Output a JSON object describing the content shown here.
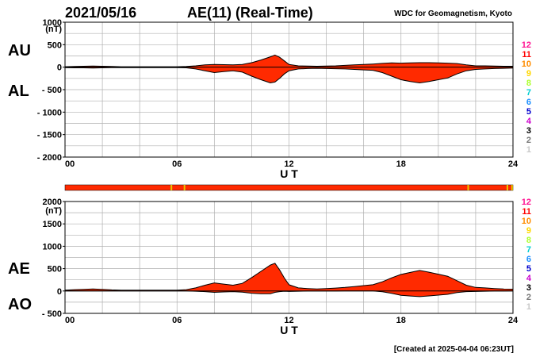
{
  "header": {
    "date": "2021/05/16",
    "title": "AE(11) (Real-Time)",
    "source": "WDC for Geomagnetism, Kyoto"
  },
  "footer": {
    "created": "[Created at 2025-04-04 06:23UT]"
  },
  "colors": {
    "fill": "#ff2a00",
    "line": "#000000",
    "grid": "#b0b0b0",
    "band": "#ff2a00",
    "band_mark": "#e6c800"
  },
  "station_scale": [
    {
      "label": "12",
      "color": "#ff1493"
    },
    {
      "label": "11",
      "color": "#ff0000"
    },
    {
      "label": "10",
      "color": "#ff8c00"
    },
    {
      "label": "9",
      "color": "#ffd700"
    },
    {
      "label": "8",
      "color": "#adff2f"
    },
    {
      "label": "7",
      "color": "#00ced1"
    },
    {
      "label": "6",
      "color": "#1e90ff"
    },
    {
      "label": "5",
      "color": "#0000cd"
    },
    {
      "label": "4",
      "color": "#cc00cc"
    },
    {
      "label": "3",
      "color": "#000000"
    },
    {
      "label": "2",
      "color": "#777777"
    },
    {
      "label": "1",
      "color": "#c8c8c8"
    }
  ],
  "chart_data": [
    {
      "type": "area",
      "panel": "AU/AL",
      "series_labels": [
        "AU",
        "AL"
      ],
      "unit_label": "(nT)",
      "xlabel": "U T",
      "ylim": [
        -2000,
        1000
      ],
      "xlim": [
        0,
        24
      ],
      "yticks": [
        1000,
        500,
        0,
        -500,
        -1000,
        -1500,
        -2000
      ],
      "ytick_labels": [
        "1000",
        "500",
        "0",
        "- 500",
        "- 1000",
        "- 1500",
        "- 2000"
      ],
      "xticks": [
        0,
        6,
        12,
        18,
        24
      ],
      "xtick_labels": [
        "00",
        "06",
        "12",
        "18",
        "24"
      ],
      "grid": true,
      "x": [
        0,
        0.5,
        1,
        1.5,
        2,
        2.5,
        3,
        3.5,
        4,
        4.5,
        5,
        5.5,
        6,
        6.5,
        7,
        7.5,
        8,
        8.5,
        9,
        9.5,
        10,
        10.5,
        11,
        11.25,
        11.5,
        11.75,
        12,
        12.5,
        13,
        13.5,
        14,
        14.5,
        15,
        15.5,
        16,
        16.5,
        17,
        17.5,
        18,
        18.5,
        19,
        19.5,
        20,
        20.5,
        21,
        21.5,
        22,
        22.5,
        23,
        23.5,
        24
      ],
      "au": [
        10,
        15,
        20,
        25,
        20,
        15,
        10,
        10,
        10,
        10,
        10,
        10,
        10,
        15,
        30,
        50,
        60,
        55,
        50,
        60,
        100,
        160,
        230,
        270,
        220,
        140,
        60,
        30,
        25,
        20,
        25,
        30,
        40,
        50,
        60,
        70,
        85,
        95,
        90,
        95,
        100,
        100,
        95,
        90,
        80,
        50,
        30,
        30,
        25,
        20,
        20
      ],
      "al": [
        -10,
        -15,
        -15,
        -20,
        -15,
        -10,
        -10,
        -10,
        -10,
        -10,
        -10,
        -10,
        -10,
        -15,
        -40,
        -80,
        -120,
        -100,
        -80,
        -110,
        -200,
        -280,
        -350,
        -330,
        -250,
        -150,
        -80,
        -40,
        -30,
        -25,
        -30,
        -35,
        -40,
        -50,
        -60,
        -70,
        -120,
        -200,
        -280,
        -320,
        -350,
        -320,
        -280,
        -240,
        -150,
        -80,
        -50,
        -40,
        -30,
        -25,
        -20
      ]
    },
    {
      "type": "area",
      "panel": "AE/AO",
      "series_labels": [
        "AE",
        "AO"
      ],
      "unit_label": "(nT)",
      "xlabel": "U T",
      "ylim": [
        -500,
        2000
      ],
      "xlim": [
        0,
        24
      ],
      "yticks": [
        2000,
        1500,
        1000,
        500,
        0,
        -500
      ],
      "ytick_labels": [
        "2000",
        "1500",
        "1000",
        "500",
        "0",
        "- 500"
      ],
      "xticks": [
        0,
        6,
        12,
        18,
        24
      ],
      "xtick_labels": [
        "00",
        "06",
        "12",
        "18",
        "24"
      ],
      "grid": true,
      "x": [
        0,
        0.5,
        1,
        1.5,
        2,
        2.5,
        3,
        3.5,
        4,
        4.5,
        5,
        5.5,
        6,
        6.5,
        7,
        7.5,
        8,
        8.5,
        9,
        9.5,
        10,
        10.5,
        11,
        11.25,
        11.5,
        11.75,
        12,
        12.5,
        13,
        13.5,
        14,
        14.5,
        15,
        15.5,
        16,
        16.5,
        17,
        17.5,
        18,
        18.5,
        19,
        19.5,
        20,
        20.5,
        21,
        21.5,
        22,
        22.5,
        23,
        23.5,
        24
      ],
      "ae": [
        20,
        30,
        35,
        45,
        35,
        25,
        20,
        20,
        20,
        20,
        20,
        20,
        20,
        30,
        70,
        130,
        180,
        155,
        130,
        170,
        300,
        440,
        580,
        620,
        470,
        290,
        140,
        70,
        55,
        45,
        55,
        65,
        80,
        100,
        120,
        140,
        205,
        295,
        370,
        415,
        460,
        420,
        375,
        330,
        230,
        130,
        80,
        70,
        55,
        45,
        40
      ],
      "ao": [
        0,
        0,
        2,
        2,
        2,
        2,
        0,
        0,
        0,
        0,
        0,
        0,
        0,
        0,
        -5,
        -15,
        -30,
        -22,
        -15,
        -25,
        -50,
        -60,
        -60,
        -30,
        -15,
        -5,
        -10,
        -5,
        -2,
        -2,
        -2,
        -2,
        0,
        0,
        0,
        0,
        -17,
        -52,
        -95,
        -112,
        -125,
        -110,
        -92,
        -75,
        -35,
        -15,
        -10,
        -5,
        -2,
        -2,
        0
      ]
    }
  ],
  "station_band": {
    "marks_ut": [
      5.7,
      6.4,
      21.6,
      23.7,
      23.95
    ]
  }
}
